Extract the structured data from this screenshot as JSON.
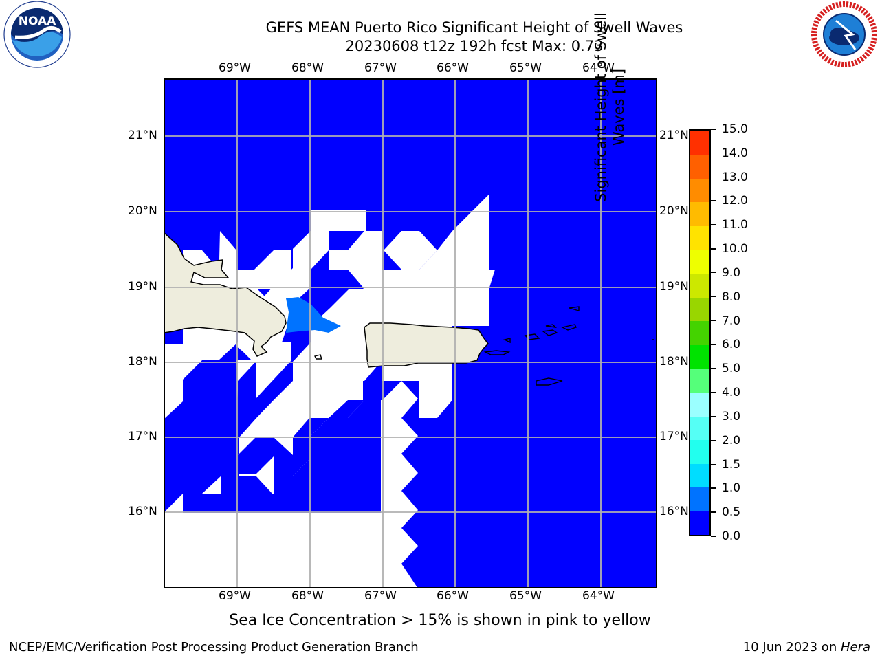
{
  "header": {
    "title_line1": "GEFS MEAN Puerto Rico Significant Height of Swell Waves",
    "title_line2": "20230608 t12z 192h fcst   Max: 0.73"
  },
  "logos": {
    "noaa_text": "NOAA",
    "noaa_ring_text": "NATIONAL OCEANIC AND ATMOSPHERIC ADMINISTRATION · U.S. DEPARTMENT OF COMMERCE",
    "nws_ring_text": "NATIONAL WEATHER SERVICE"
  },
  "map": {
    "lon_labels": [
      "69°W",
      "68°W",
      "67°W",
      "66°W",
      "65°W",
      "64°W"
    ],
    "lat_labels": [
      "21°N",
      "20°N",
      "19°N",
      "18°N",
      "17°N",
      "16°N"
    ],
    "right_lat_labels": [
      "21°N",
      "20°N",
      "19°N",
      "18°N",
      "17°N",
      "16°N"
    ],
    "colors": {
      "ocean": "#0000ff",
      "swell_05": "#0073ff",
      "land": "#eeeddd",
      "nodata": "#ffffff",
      "grid": "#b0b0b0"
    }
  },
  "colorbar": {
    "ticks": [
      "0.0",
      "0.5",
      "1.0",
      "1.5",
      "2.0",
      "3.0",
      "4.0",
      "5.0",
      "6.0",
      "7.0",
      "8.0",
      "9.0",
      "10.0",
      "11.0",
      "12.0",
      "13.0",
      "14.0",
      "15.0"
    ],
    "colors": [
      "#0000ff",
      "#0073ff",
      "#00ddff",
      "#22ffee",
      "#55fff5",
      "#9bffff",
      "#55ff7a",
      "#00e300",
      "#44d300",
      "#99d600",
      "#cce800",
      "#eeff00",
      "#ffe300",
      "#ffbb00",
      "#ff8c00",
      "#ff6000",
      "#ff3000",
      "#ff0000"
    ],
    "label_line1": "Significant Height of Swell",
    "label_line2": "Waves [m]"
  },
  "footer": {
    "note": "Sea Ice Concentration > 15% is shown in pink to yellow",
    "left": "NCEP/EMC/Verification Post Processing Product Generation Branch",
    "right_date": "10 Jun 2023 on ",
    "right_host": "Hera"
  }
}
